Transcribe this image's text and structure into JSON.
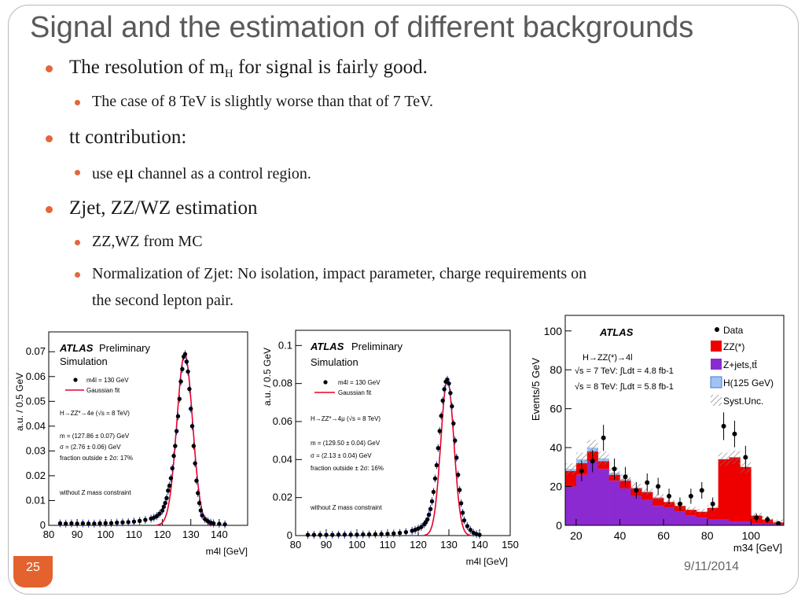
{
  "slide": {
    "title": "Signal and the estimation of different backgrounds",
    "number": "25",
    "date": "9/11/2014",
    "accent_color": "#e4622d"
  },
  "bullets": {
    "b1_pre": "The resolution of m",
    "b1_sub": "H",
    "b1_post": " for signal is fairly good.",
    "b1_1": "The case of 8 TeV is slightly worse than that of 7 TeV.",
    "b2": "tt contribution:",
    "b2_1_pre": "use e",
    "b2_1_mu": "μ",
    "b2_1_post": "  channel as a control region.",
    "b3": "Zjet, ZZ/WZ estimation",
    "b3_1": "ZZ,WZ from MC",
    "b3_2_line1": "Normalization of Zjet:  No isolation, impact parameter, charge requirements on",
    "b3_2_line2": "the second lepton pair."
  },
  "chart_data": [
    {
      "type": "scatter",
      "ylabel": "a.u. / 0.5 GeV",
      "xlabel": "m4l [GeV]",
      "xlim": [
        80,
        150
      ],
      "ylim": [
        0,
        0.078
      ],
      "xticks": [
        "80",
        "90",
        "100",
        "110",
        "120",
        "130",
        "140"
      ],
      "yticks": [
        "0",
        "0.01",
        "0.02",
        "0.03",
        "0.04",
        "0.05",
        "0.06",
        "0.07"
      ],
      "atlas_label": "ATLAS",
      "atlas_sub": "Preliminary",
      "sim_label": "Simulation",
      "legend_data": "m4l = 130 GeV",
      "legend_fit": "Gaussian fit",
      "channel": "H→ZZ*→4e (√s = 8 TeV)",
      "fit_m": "m = (127.86 ± 0.07) GeV",
      "fit_sigma": "σ = (2.76 ± 0.06) GeV",
      "fit_frac": "fraction outside ± 2σ: 17%",
      "note": "without Z mass constraint",
      "gauss": {
        "mean": 127.86,
        "sigma": 2.76,
        "amp": 0.069
      },
      "points": [
        [
          84,
          0.0008
        ],
        [
          86,
          0.0007
        ],
        [
          88,
          0.0008
        ],
        [
          90,
          0.0007
        ],
        [
          92,
          0.0008
        ],
        [
          94,
          0.0007
        ],
        [
          96,
          0.0007
        ],
        [
          98,
          0.0008
        ],
        [
          100,
          0.0009
        ],
        [
          102,
          0.0009
        ],
        [
          104,
          0.0011
        ],
        [
          106,
          0.0012
        ],
        [
          108,
          0.0013
        ],
        [
          110,
          0.0015
        ],
        [
          112,
          0.0018
        ],
        [
          114,
          0.0022
        ],
        [
          116,
          0.0027
        ],
        [
          117,
          0.0031
        ],
        [
          118,
          0.0037
        ],
        [
          119,
          0.0047
        ],
        [
          120,
          0.006
        ],
        [
          120.5,
          0.0075
        ],
        [
          121,
          0.009
        ],
        [
          121.5,
          0.011
        ],
        [
          122,
          0.014
        ],
        [
          122.5,
          0.016
        ],
        [
          123,
          0.019
        ],
        [
          123.5,
          0.023
        ],
        [
          124,
          0.028
        ],
        [
          124.5,
          0.032
        ],
        [
          125,
          0.038
        ],
        [
          125.5,
          0.044
        ],
        [
          126,
          0.051
        ],
        [
          126.5,
          0.058
        ],
        [
          127,
          0.063
        ],
        [
          127.5,
          0.068
        ],
        [
          128,
          0.069
        ],
        [
          128.5,
          0.066
        ],
        [
          129,
          0.062
        ],
        [
          129.5,
          0.055
        ],
        [
          130,
          0.047
        ],
        [
          130.5,
          0.04
        ],
        [
          131,
          0.032
        ],
        [
          131.5,
          0.025
        ],
        [
          132,
          0.018
        ],
        [
          132.5,
          0.013
        ],
        [
          133,
          0.009
        ],
        [
          133.5,
          0.006
        ],
        [
          134,
          0.004
        ],
        [
          135,
          0.0025
        ],
        [
          136,
          0.0017
        ],
        [
          137,
          0.0011
        ],
        [
          138,
          0.0008
        ],
        [
          140,
          0.0006
        ],
        [
          142,
          0.0004
        ]
      ]
    },
    {
      "type": "scatter",
      "ylabel": "a.u. / 0.5 GeV",
      "xlabel": "m4l [GeV]",
      "xlim": [
        80,
        150
      ],
      "ylim": [
        0,
        0.108
      ],
      "xticks": [
        "80",
        "90",
        "100",
        "110",
        "120",
        "130",
        "140",
        "150"
      ],
      "yticks": [
        "0",
        "0.02",
        "0.04",
        "0.06",
        "0.08",
        "0.1"
      ],
      "atlas_label": "ATLAS",
      "atlas_sub": "Preliminary",
      "sim_label": "Simulation",
      "legend_data": "m4l = 130 GeV",
      "legend_fit": "Gaussian fit",
      "channel": "H→ZZ*→4μ (√s = 8 TeV)",
      "fit_m": "m = (129.50 ± 0.04) GeV",
      "fit_sigma": "σ = (2.13 ± 0.04) GeV",
      "fit_frac": "fraction outside ± 2σ: 16%",
      "note": "without Z mass constraint",
      "gauss": {
        "mean": 129.5,
        "sigma": 2.13,
        "amp": 0.082
      },
      "points": [
        [
          84,
          0.0004
        ],
        [
          86,
          0.0004
        ],
        [
          88,
          0.0004
        ],
        [
          90,
          0.0004
        ],
        [
          92,
          0.0004
        ],
        [
          94,
          0.0005
        ],
        [
          96,
          0.0005
        ],
        [
          98,
          0.0005
        ],
        [
          100,
          0.0005
        ],
        [
          102,
          0.0006
        ],
        [
          104,
          0.0006
        ],
        [
          106,
          0.0007
        ],
        [
          108,
          0.0008
        ],
        [
          110,
          0.0009
        ],
        [
          112,
          0.0011
        ],
        [
          114,
          0.0014
        ],
        [
          116,
          0.0018
        ],
        [
          118,
          0.0025
        ],
        [
          119,
          0.003
        ],
        [
          120,
          0.0037
        ],
        [
          121,
          0.0045
        ],
        [
          122,
          0.006
        ],
        [
          122.5,
          0.007
        ],
        [
          123,
          0.0085
        ],
        [
          123.5,
          0.011
        ],
        [
          124,
          0.014
        ],
        [
          124.5,
          0.018
        ],
        [
          125,
          0.023
        ],
        [
          125.5,
          0.03
        ],
        [
          126,
          0.037
        ],
        [
          126.5,
          0.046
        ],
        [
          127,
          0.055
        ],
        [
          127.5,
          0.063
        ],
        [
          128,
          0.071
        ],
        [
          128.5,
          0.077
        ],
        [
          129,
          0.081
        ],
        [
          129.5,
          0.082
        ],
        [
          130,
          0.08
        ],
        [
          130.5,
          0.075
        ],
        [
          131,
          0.068
        ],
        [
          131.5,
          0.059
        ],
        [
          132,
          0.05
        ],
        [
          132.5,
          0.041
        ],
        [
          133,
          0.032
        ],
        [
          133.5,
          0.024
        ],
        [
          134,
          0.017
        ],
        [
          134.5,
          0.012
        ],
        [
          135,
          0.008
        ],
        [
          136,
          0.005
        ],
        [
          137,
          0.003
        ],
        [
          138,
          0.0015
        ],
        [
          139,
          0.0008
        ],
        [
          140,
          0.0004
        ]
      ]
    },
    {
      "type": "histogram",
      "ylabel": "Events/5 GeV",
      "xlabel": "m34 [GeV]",
      "xlim": [
        15,
        115
      ],
      "ylim": [
        0,
        108
      ],
      "xticks": [
        "20",
        "40",
        "60",
        "80",
        "100"
      ],
      "yticks": [
        "0",
        "20",
        "40",
        "60",
        "80",
        "100"
      ],
      "atlas_label": "ATLAS",
      "process": "H→ZZ(*)→4l",
      "lumi_7": "√s = 7 TeV: ∫Ldt = 4.8 fb-1",
      "lumi_8": "√s = 8 TeV: ∫Ldt = 5.8 fb-1",
      "legend": [
        "Data",
        "ZZ(*)",
        "Z+jets,tt̄",
        "H(125 GeV)",
        "Syst.Unc."
      ],
      "colors": {
        "zz": "#ee0000",
        "zjets": "#8a2ad0",
        "higgs": "#9fc3f5"
      },
      "bin_edges": [
        15,
        20,
        25,
        30,
        35,
        40,
        45,
        50,
        55,
        60,
        65,
        70,
        75,
        80,
        85,
        90,
        95,
        100,
        105,
        110,
        115
      ],
      "zjets": [
        20,
        26,
        33,
        29,
        23,
        19,
        15,
        13,
        10,
        9,
        7,
        5,
        4,
        3,
        3,
        2,
        2,
        1,
        1,
        0.5
      ],
      "zz": [
        8,
        6,
        5,
        4,
        3,
        4,
        4,
        4,
        4,
        3,
        3,
        3,
        3,
        6,
        31,
        33,
        28,
        4,
        2,
        1
      ],
      "higgs": [
        1,
        2,
        2,
        1.5,
        1,
        1,
        0.5,
        0.5,
        0.5,
        0,
        0,
        0,
        0,
        0,
        0,
        0,
        0,
        0,
        0,
        0
      ],
      "data": [
        [
          22.5,
          28
        ],
        [
          27.5,
          33
        ],
        [
          32.5,
          45
        ],
        [
          37.5,
          29
        ],
        [
          42.5,
          25
        ],
        [
          47.5,
          18
        ],
        [
          52.5,
          22
        ],
        [
          57.5,
          20
        ],
        [
          62.5,
          15
        ],
        [
          67.5,
          11
        ],
        [
          72.5,
          15
        ],
        [
          77.5,
          18
        ],
        [
          82.5,
          11
        ],
        [
          87.5,
          51
        ],
        [
          92.5,
          47
        ],
        [
          97.5,
          35
        ],
        [
          102.5,
          4
        ],
        [
          107.5,
          3
        ],
        [
          112.5,
          1
        ]
      ]
    }
  ]
}
